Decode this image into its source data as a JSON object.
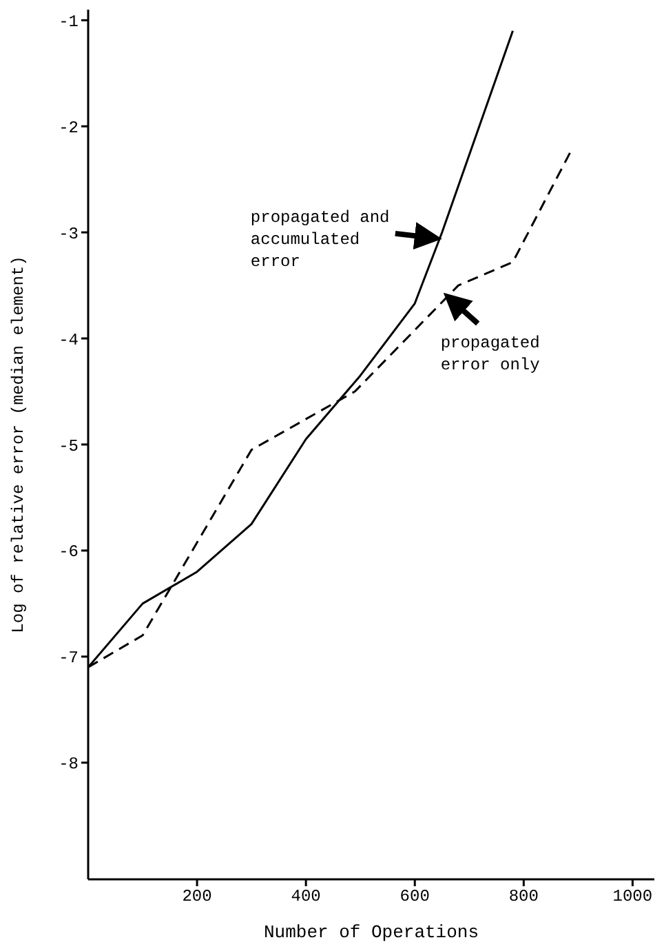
{
  "chart_data": {
    "type": "line",
    "xlabel": "Number of Operations",
    "ylabel": "Log of relative error    (median element)",
    "xlim": [
      0,
      1040
    ],
    "xticks": [
      200,
      400,
      600,
      800,
      1000
    ],
    "ylim": [
      -9.1,
      -0.9
    ],
    "yticks": [
      -1,
      -2,
      -3,
      -4,
      -5,
      -6,
      -7,
      -8
    ],
    "grid": false,
    "marker": "none",
    "series": [
      {
        "color": "#000000",
        "line_style": "solid",
        "x": [
          0,
          100,
          200,
          300,
          400,
          500,
          600,
          650,
          780
        ],
        "values": [
          -7.1,
          -6.5,
          -6.2,
          -5.75,
          -4.95,
          -4.35,
          -3.67,
          -3.0,
          -1.1
        ]
      },
      {
        "color": "#000000",
        "line_style": "dashed",
        "x": [
          0,
          100,
          300,
          490,
          680,
          780,
          885
        ],
        "values": [
          -7.1,
          -6.8,
          -5.05,
          -4.5,
          -3.5,
          -3.28,
          -2.25
        ]
      }
    ],
    "annotations": [
      {
        "text": "propagated and accumulated error",
        "x": 640,
        "y": -3.05
      },
      {
        "text": "propagated error only",
        "x": 660,
        "y": -3.6
      }
    ]
  }
}
